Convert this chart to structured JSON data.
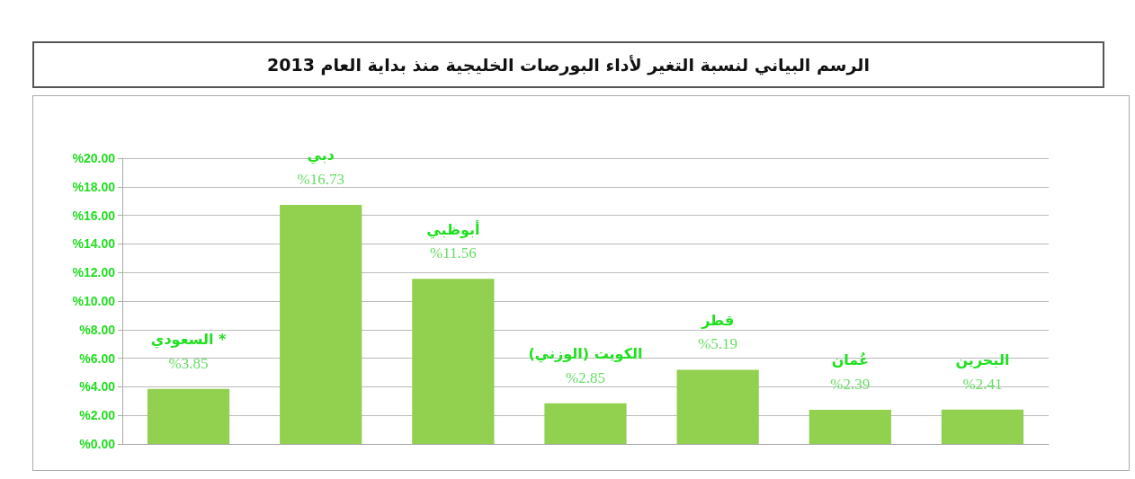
{
  "chart_data": {
    "type": "bar",
    "title": "الرسم البياني لنسبة التغير لأداء البورصات الخليجية منذ بداية العام 2013",
    "categories": [
      "السعودي *",
      "دبي",
      "أبوظبي",
      "الكويت (الوزني)",
      "قطر",
      "عُمان",
      "البحرين"
    ],
    "values": [
      3.85,
      16.73,
      11.56,
      2.85,
      5.19,
      2.39,
      2.41
    ],
    "value_labels": [
      "%3.85",
      "%16.73",
      "%11.56",
      "%2.85",
      "%5.19",
      "%2.39",
      "%2.41"
    ],
    "color": "#92d050",
    "ylim": [
      0,
      20
    ],
    "yticks": [
      {
        "value": 0,
        "label": "%0.00"
      },
      {
        "value": 2,
        "label": "%2.00"
      },
      {
        "value": 4,
        "label": "%4.00"
      },
      {
        "value": 6,
        "label": "%6.00"
      },
      {
        "value": 8,
        "label": "%8.00"
      },
      {
        "value": 10,
        "label": "%10.00"
      },
      {
        "value": 12,
        "label": "%12.00"
      },
      {
        "value": 14,
        "label": "%14.00"
      },
      {
        "value": 16,
        "label": "%16.00"
      },
      {
        "value": 18,
        "label": "%18.00"
      },
      {
        "value": 20,
        "label": "%20.00"
      }
    ],
    "grid": "y",
    "tick_labels": "y"
  }
}
